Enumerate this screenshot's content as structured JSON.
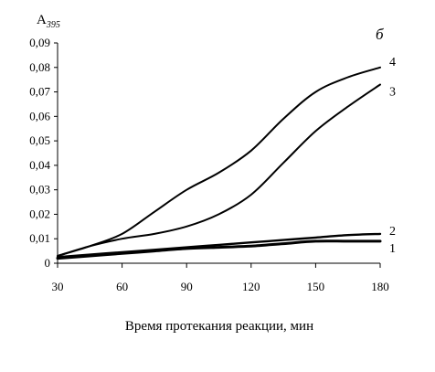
{
  "chart_data": {
    "type": "line",
    "panel_label": "б",
    "ylabel_main": "A",
    "ylabel_sub": "395",
    "xlabel": "Время протекания реакции, мин",
    "xlim": [
      30,
      180
    ],
    "ylim": [
      0,
      0.09
    ],
    "x_ticks": [
      "30",
      "60",
      "90",
      "120",
      "150",
      "180"
    ],
    "y_ticks": [
      "0",
      "0,01",
      "0,02",
      "0,03",
      "0,04",
      "0,05",
      "0,06",
      "0,07",
      "0,08",
      "0,09"
    ],
    "grid": false,
    "legend": "none",
    "series": [
      {
        "name": "1",
        "x": [
          30,
          45,
          60,
          75,
          90,
          105,
          120,
          135,
          150,
          165,
          180
        ],
        "y": [
          0.002,
          0.003,
          0.004,
          0.005,
          0.006,
          0.0065,
          0.007,
          0.008,
          0.009,
          0.009,
          0.009
        ]
      },
      {
        "name": "2",
        "x": [
          30,
          45,
          60,
          75,
          90,
          105,
          120,
          135,
          150,
          165,
          180
        ],
        "y": [
          0.0025,
          0.0035,
          0.0045,
          0.0055,
          0.0065,
          0.0075,
          0.0085,
          0.0095,
          0.0105,
          0.0115,
          0.012
        ]
      },
      {
        "name": "3",
        "x": [
          30,
          45,
          60,
          75,
          90,
          105,
          120,
          135,
          150,
          165,
          180
        ],
        "y": [
          0.003,
          0.007,
          0.01,
          0.012,
          0.015,
          0.02,
          0.028,
          0.041,
          0.054,
          0.064,
          0.073
        ]
      },
      {
        "name": "4",
        "x": [
          30,
          45,
          60,
          75,
          90,
          105,
          120,
          135,
          150,
          165,
          180
        ],
        "y": [
          0.003,
          0.007,
          0.012,
          0.021,
          0.03,
          0.037,
          0.046,
          0.059,
          0.07,
          0.076,
          0.08
        ]
      }
    ],
    "colors": {
      "line": "#000000",
      "axis": "#000000"
    }
  }
}
